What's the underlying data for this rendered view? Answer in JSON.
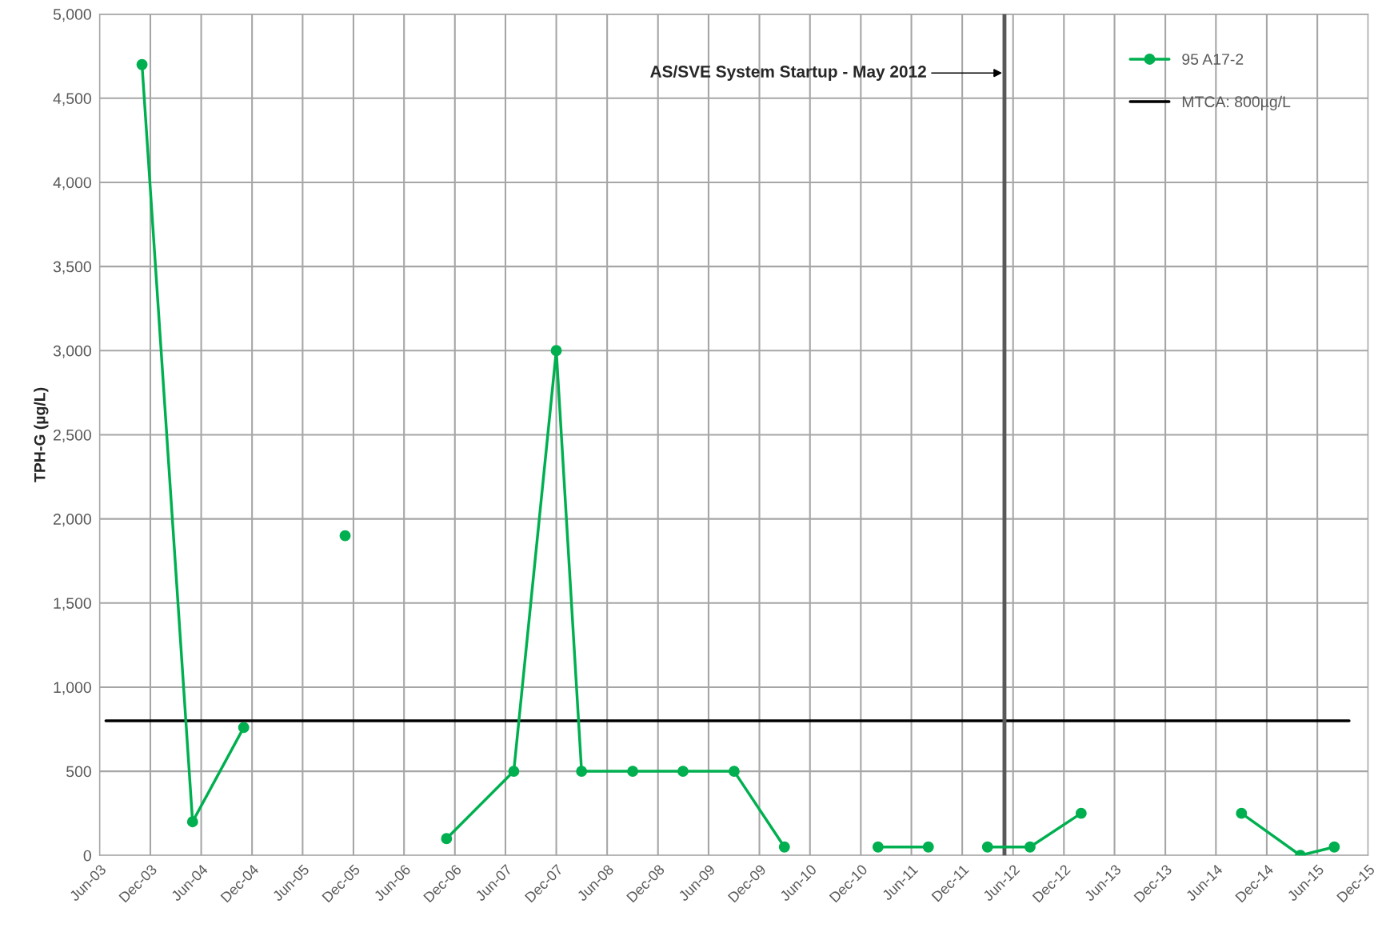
{
  "chart_data": {
    "type": "line",
    "ylabel": "TPH-G (µg/L)",
    "series": [
      {
        "name": "95 A17-2",
        "color": "#00b050",
        "marker": "circle",
        "line_style": "solid",
        "x": [
          "2003-11",
          "2004-05",
          "2004-11",
          "2005-05",
          "2005-11",
          "2006-05",
          "2006-11",
          "2007-07",
          "2007-12",
          "2008-03",
          "2008-09",
          "2009-03",
          "2009-09",
          "2010-03",
          "2010-09",
          "2011-02",
          "2011-08",
          "2011-11",
          "2012-03",
          "2012-08",
          "2013-02",
          "2013-12",
          "2014-09",
          "2015-04",
          "2015-08"
        ],
        "values": [
          4700,
          200,
          760,
          null,
          1900,
          null,
          100,
          500,
          3000,
          500,
          500,
          500,
          500,
          50,
          null,
          50,
          50,
          null,
          50,
          50,
          250,
          null,
          250,
          0,
          50
        ]
      }
    ],
    "ref_lines": [
      {
        "axis": "y",
        "value": 800,
        "label": "MTCA: 800µg/L",
        "color": "#000000",
        "line_style": "solid"
      },
      {
        "axis": "x",
        "value": "2012-05",
        "label": null,
        "color": "#595959",
        "line_style": "solid"
      }
    ],
    "annotations": [
      {
        "text": "AS/SVE System Startup - May 2012",
        "x": "2012-05",
        "y": 4650
      }
    ],
    "xlim": [
      "2003-06",
      "2015-12"
    ],
    "xticks": [
      {
        "value": "2003-06",
        "label": "Jun-03"
      },
      {
        "value": "2003-12",
        "label": "Dec-03"
      },
      {
        "value": "2004-06",
        "label": "Jun-04"
      },
      {
        "value": "2004-12",
        "label": "Dec-04"
      },
      {
        "value": "2005-06",
        "label": "Jun-05"
      },
      {
        "value": "2005-12",
        "label": "Dec-05"
      },
      {
        "value": "2006-06",
        "label": "Jun-06"
      },
      {
        "value": "2006-12",
        "label": "Dec-06"
      },
      {
        "value": "2007-06",
        "label": "Jun-07"
      },
      {
        "value": "2007-12",
        "label": "Dec-07"
      },
      {
        "value": "2008-06",
        "label": "Jun-08"
      },
      {
        "value": "2008-12",
        "label": "Dec-08"
      },
      {
        "value": "2009-06",
        "label": "Jun-09"
      },
      {
        "value": "2009-12",
        "label": "Dec-09"
      },
      {
        "value": "2010-06",
        "label": "Jun-10"
      },
      {
        "value": "2010-12",
        "label": "Dec-10"
      },
      {
        "value": "2011-06",
        "label": "Jun-11"
      },
      {
        "value": "2011-12",
        "label": "Dec-11"
      },
      {
        "value": "2012-06",
        "label": "Jun-12"
      },
      {
        "value": "2012-12",
        "label": "Dec-12"
      },
      {
        "value": "2013-06",
        "label": "Jun-13"
      },
      {
        "value": "2013-12",
        "label": "Dec-13"
      },
      {
        "value": "2014-06",
        "label": "Jun-14"
      },
      {
        "value": "2014-12",
        "label": "Dec-14"
      },
      {
        "value": "2015-06",
        "label": "Jun-15"
      },
      {
        "value": "2015-12",
        "label": "Dec-15"
      }
    ],
    "ylim": [
      0,
      5000
    ],
    "yticks": [
      0,
      500,
      {
        "value": 1000,
        "label": "1,000"
      },
      {
        "value": 1500,
        "label": "1,500"
      },
      {
        "value": 2000,
        "label": "2,000"
      },
      {
        "value": 2500,
        "label": "2,500"
      },
      {
        "value": 3000,
        "label": "3,000"
      },
      {
        "value": 3500,
        "label": "3,500"
      },
      {
        "value": 4000,
        "label": "4,000"
      },
      {
        "value": 4500,
        "label": "4,500"
      },
      {
        "value": 5000,
        "label": "5,000"
      }
    ],
    "grid": true,
    "legend": "top right"
  }
}
